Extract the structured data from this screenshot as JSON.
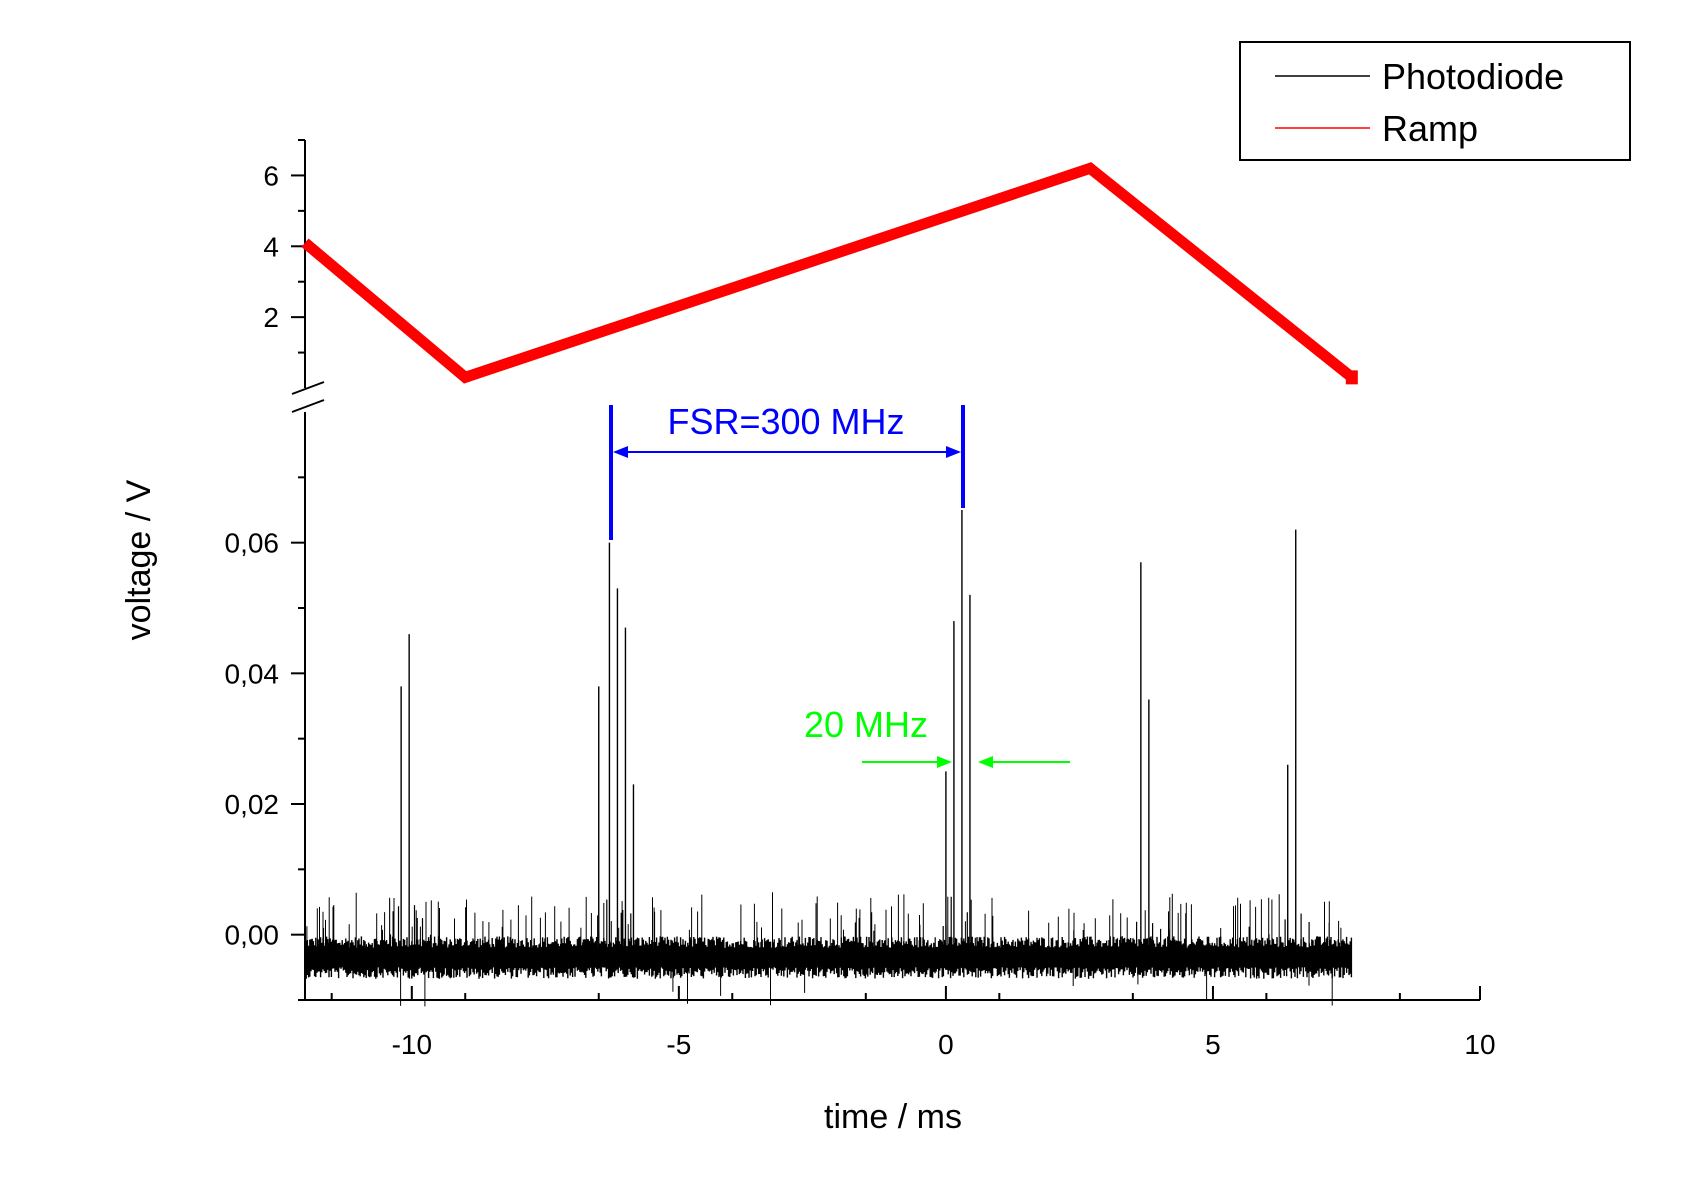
{
  "chart_data": {
    "type": "line",
    "title": "",
    "xlabel": "time / ms",
    "ylabel": "voltage / V",
    "xlim": [
      -12,
      10
    ],
    "x_ticks": [
      -10,
      -5,
      0,
      5,
      10
    ],
    "x_tick_labels": [
      "-10",
      "-5",
      "0",
      "5",
      "10"
    ],
    "axis_break": true,
    "upper_axis": {
      "ylim": [
        0,
        7
      ],
      "y_ticks": [
        2,
        4,
        6
      ],
      "y_tick_labels": [
        "2",
        "4",
        "6"
      ]
    },
    "lower_axis": {
      "ylim": [
        -0.01,
        0.08
      ],
      "y_ticks": [
        0.0,
        0.02,
        0.04,
        0.06
      ],
      "y_tick_labels": [
        "0,00",
        "0,02",
        "0,04",
        "0,06"
      ]
    },
    "legend": {
      "position": "top-right",
      "entries": [
        {
          "name": "Photodiode",
          "color": "#000000"
        },
        {
          "name": "Ramp",
          "color": "#ff0000"
        }
      ]
    },
    "series": [
      {
        "name": "Ramp",
        "color": "#ff0000",
        "axis": "upper",
        "x": [
          -12.0,
          -9.0,
          2.7,
          7.6
        ],
        "y": [
          4.1,
          0.3,
          6.2,
          0.3
        ]
      },
      {
        "name": "Photodiode",
        "color": "#000000",
        "axis": "lower",
        "baseline": -0.0035,
        "noise": 0.0025,
        "x_range": [
          -12.0,
          7.6
        ],
        "peaks_x": [
          -10.2,
          -10.05,
          -6.5,
          -6.3,
          -6.15,
          -6.0,
          -5.85,
          0.0,
          0.15,
          0.3,
          0.45,
          3.65,
          3.8,
          6.4,
          6.55
        ],
        "peaks_y": [
          0.038,
          0.046,
          0.038,
          0.06,
          0.053,
          0.047,
          0.023,
          0.025,
          0.048,
          0.065,
          0.052,
          0.057,
          0.036,
          0.026,
          0.062
        ]
      }
    ],
    "annotations": [
      {
        "text": "FSR=300 MHz",
        "color": "#0000ff",
        "x_from": -6.3,
        "x_to": 0.3,
        "y": 0.073
      },
      {
        "text": "20 MHz",
        "color": "#00ff00",
        "x_from": 0.1,
        "x_to": 0.6,
        "y": 0.026
      }
    ]
  }
}
